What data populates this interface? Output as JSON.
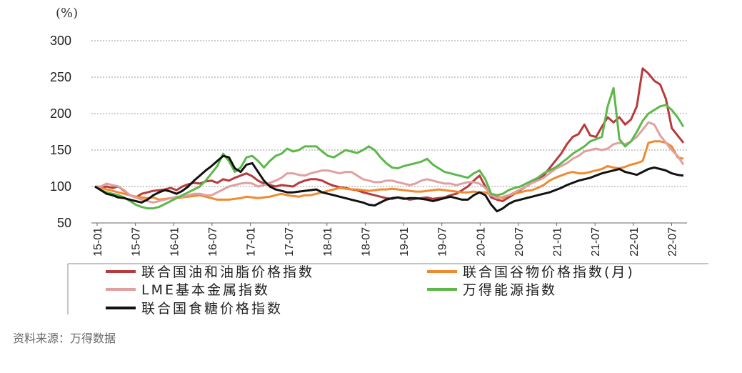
{
  "unit_label": "(%)",
  "source_note": "资料来源：万得数据",
  "chart_data": {
    "type": "line",
    "ylim": [
      50,
      300
    ],
    "yticks": [
      50,
      100,
      150,
      200,
      250,
      300
    ],
    "x_tick_labels": [
      "15-01",
      "15-07",
      "16-01",
      "16-07",
      "17-01",
      "17-07",
      "18-01",
      "18-07",
      "19-01",
      "19-07",
      "20-01",
      "20-07",
      "21-01",
      "21-07",
      "22-01",
      "22-07"
    ],
    "grid": true,
    "legend_position": "bottom",
    "series": [
      {
        "name": "联合国油和油脂价格指数",
        "color": "#b83a3a",
        "values": [
          100,
          98,
          100,
          98,
          100,
          94,
          88,
          85,
          90,
          92,
          94,
          95,
          96,
          98,
          95,
          100,
          103,
          105,
          104,
          107,
          108,
          105,
          110,
          108,
          112,
          115,
          118,
          114,
          108,
          104,
          102,
          100,
          102,
          101,
          100,
          105,
          108,
          110,
          110,
          108,
          104,
          101,
          99,
          98,
          96,
          95,
          92,
          90,
          88,
          86,
          84,
          83,
          85,
          84,
          82,
          83,
          84,
          85,
          83,
          84,
          85,
          88,
          90,
          95,
          100,
          108,
          115,
          100,
          85,
          82,
          80,
          85,
          90,
          95,
          100,
          105,
          110,
          115,
          125,
          135,
          145,
          158,
          168,
          172,
          185,
          170,
          168,
          182,
          195,
          188,
          195,
          185,
          192,
          210,
          262,
          255,
          245,
          240,
          220,
          180,
          170,
          160
        ]
      },
      {
        "name": "联合国谷物价格指数(月)",
        "color": "#f08a30",
        "values": [
          100,
          98,
          96,
          94,
          92,
          90,
          88,
          86,
          85,
          84,
          85,
          82,
          83,
          84,
          84,
          85,
          86,
          87,
          88,
          86,
          84,
          82,
          82,
          82,
          83,
          84,
          86,
          85,
          84,
          85,
          86,
          88,
          90,
          88,
          87,
          86,
          88,
          88,
          90,
          92,
          94,
          96,
          98,
          97,
          96,
          96,
          95,
          94,
          95,
          96,
          96,
          97,
          96,
          95,
          94,
          93,
          93,
          94,
          95,
          96,
          95,
          94,
          93,
          92,
          92,
          93,
          92,
          92,
          88,
          86,
          84,
          88,
          90,
          92,
          94,
          95,
          98,
          102,
          108,
          112,
          115,
          118,
          120,
          118,
          118,
          120,
          122,
          124,
          128,
          126,
          125,
          127,
          130,
          132,
          135,
          160,
          162,
          162,
          160,
          155,
          140,
          138
        ]
      },
      {
        "name": "LME基本金属指数",
        "color": "#e0a0a0",
        "values": [
          100,
          100,
          104,
          102,
          100,
          95,
          88,
          85,
          82,
          80,
          78,
          80,
          82,
          84,
          86,
          86,
          88,
          90,
          90,
          88,
          88,
          92,
          96,
          100,
          102,
          104,
          105,
          104,
          100,
          102,
          105,
          108,
          112,
          118,
          118,
          116,
          115,
          118,
          120,
          122,
          122,
          120,
          118,
          120,
          120,
          115,
          110,
          108,
          106,
          106,
          108,
          108,
          106,
          104,
          102,
          104,
          108,
          110,
          108,
          106,
          104,
          104,
          102,
          104,
          106,
          106,
          104,
          98,
          88,
          84,
          86,
          88,
          92,
          96,
          100,
          105,
          108,
          112,
          118,
          124,
          128,
          132,
          138,
          142,
          148,
          150,
          152,
          150,
          152,
          158,
          160,
          158,
          162,
          168,
          178,
          188,
          185,
          170,
          160,
          150,
          142,
          130
        ]
      },
      {
        "name": "万得能源指数",
        "color": "#5cb84a",
        "values": [
          100,
          95,
          92,
          90,
          88,
          85,
          80,
          75,
          72,
          70,
          70,
          72,
          76,
          80,
          84,
          88,
          92,
          96,
          100,
          108,
          118,
          128,
          145,
          135,
          120,
          126,
          140,
          142,
          135,
          126,
          135,
          142,
          145,
          152,
          148,
          150,
          155,
          155,
          155,
          148,
          142,
          140,
          145,
          150,
          148,
          146,
          150,
          155,
          150,
          140,
          132,
          126,
          125,
          128,
          130,
          132,
          134,
          138,
          130,
          125,
          120,
          118,
          116,
          114,
          112,
          118,
          122,
          110,
          90,
          88,
          90,
          95,
          98,
          100,
          104,
          108,
          112,
          118,
          122,
          126,
          132,
          138,
          145,
          150,
          155,
          162,
          165,
          168,
          210,
          235,
          165,
          155,
          162,
          175,
          190,
          200,
          205,
          210,
          212,
          205,
          195,
          182
        ]
      },
      {
        "name": "联合国食糖价格指数",
        "color": "#111111",
        "values": [
          100,
          95,
          90,
          88,
          85,
          84,
          82,
          80,
          78,
          82,
          88,
          92,
          95,
          93,
          90,
          94,
          100,
          108,
          115,
          122,
          128,
          135,
          142,
          140,
          125,
          120,
          130,
          132,
          120,
          108,
          100,
          96,
          94,
          92,
          92,
          93,
          94,
          95,
          96,
          92,
          90,
          88,
          86,
          84,
          82,
          80,
          78,
          75,
          74,
          78,
          82,
          84,
          85,
          83,
          84,
          84,
          83,
          82,
          80,
          82,
          84,
          86,
          84,
          82,
          82,
          88,
          92,
          88,
          75,
          66,
          70,
          76,
          80,
          82,
          84,
          86,
          88,
          90,
          92,
          95,
          98,
          102,
          105,
          108,
          110,
          112,
          115,
          118,
          120,
          122,
          124,
          120,
          118,
          116,
          120,
          124,
          126,
          124,
          122,
          118,
          116,
          115
        ]
      }
    ]
  }
}
